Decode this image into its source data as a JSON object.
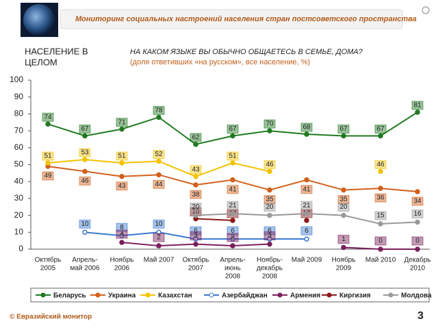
{
  "header": {
    "title": "Мониторинг социальных настроений населения стран постсоветского пространства"
  },
  "footer": {
    "brand": "© Евразийский монитор",
    "page": "3"
  },
  "chart_data": {
    "type": "line",
    "heading": [
      "НАСЕЛЕНИЕ В",
      "ЦЕЛОМ"
    ],
    "title": "НА КАКОМ ЯЗЫКЕ ВЫ ОБЫЧНО ОБЩАЕТЕСЬ В СЕМЬЕ, ДОМА?",
    "subtitle": "(доля ответивших «на русском», все население, %)",
    "categories": [
      [
        "Октябрь",
        "2005"
      ],
      [
        "Апрель-",
        "май 2006"
      ],
      [
        "Ноябрь",
        "2006"
      ],
      [
        "Май 2007"
      ],
      [
        "Октябрь",
        "2007"
      ],
      [
        "Апрель-",
        "июнь",
        "2008"
      ],
      [
        "Ноябрь-",
        "декабрь",
        "2008"
      ],
      [
        "Май 2009"
      ],
      [
        "Ноябрь",
        "2009"
      ],
      [
        "Май 2010"
      ],
      [
        "Декабрь",
        "2010"
      ]
    ],
    "ylim": [
      0,
      100
    ],
    "yticks": [
      0,
      10,
      20,
      30,
      40,
      50,
      60,
      70,
      80,
      90,
      100
    ],
    "series": [
      {
        "name": "Беларусь",
        "color": "#1f7a1f",
        "values": [
          74,
          67,
          71,
          78,
          62,
          67,
          70,
          68,
          67,
          67,
          81
        ]
      },
      {
        "name": "Украина",
        "color": "#d2601a",
        "values": [
          49,
          46,
          43,
          44,
          38,
          41,
          35,
          41,
          35,
          36,
          34
        ]
      },
      {
        "name": "Казахстан",
        "color": "#f2c200",
        "values": [
          51,
          53,
          51,
          52,
          43,
          51,
          46,
          null,
          null,
          46,
          null
        ]
      },
      {
        "name": "Азербайджан",
        "color": "#3a78d0",
        "values": [
          null,
          10,
          8,
          10,
          6,
          6,
          6,
          6,
          null,
          null,
          null
        ]
      },
      {
        "name": "Армения",
        "color": "#7a1f5c",
        "values": [
          null,
          null,
          4,
          2,
          3,
          2,
          3,
          null,
          1,
          0,
          0
        ]
      },
      {
        "name": "Киргизия",
        "color": "#8b1a1a",
        "values": [
          null,
          null,
          null,
          null,
          18,
          17,
          null,
          17,
          null,
          null,
          null
        ]
      },
      {
        "name": "Молдова",
        "color": "#999999",
        "values": [
          null,
          null,
          null,
          null,
          20,
          21,
          20,
          21,
          20,
          15,
          16
        ]
      }
    ]
  }
}
